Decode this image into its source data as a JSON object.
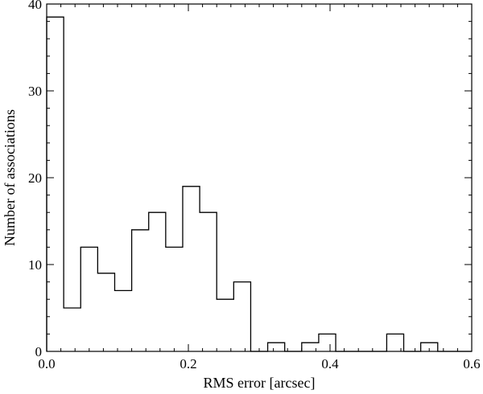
{
  "chart_data": {
    "type": "bar",
    "subtype": "histogram-step",
    "title": "",
    "xlabel": "RMS error [arcsec]",
    "ylabel": "Number of associations",
    "xlim": [
      0.0,
      0.6
    ],
    "ylim": [
      0,
      40
    ],
    "x_major_ticks": [
      0.0,
      0.2,
      0.4,
      0.6
    ],
    "x_tick_labels": [
      "0.0",
      "0.2",
      "0.4",
      "0.6"
    ],
    "x_minor_step": 0.02,
    "y_major_ticks": [
      0,
      10,
      20,
      30,
      40
    ],
    "y_tick_labels": [
      "0",
      "10",
      "20",
      "30",
      "40"
    ],
    "y_minor_step": 2,
    "grid": false,
    "bin_edges": [
      0.0,
      0.024,
      0.048,
      0.072,
      0.096,
      0.12,
      0.144,
      0.168,
      0.192,
      0.216,
      0.24,
      0.264,
      0.288,
      0.312,
      0.336,
      0.36,
      0.384,
      0.408,
      0.432,
      0.456,
      0.48,
      0.504,
      0.528,
      0.552,
      0.576,
      0.6
    ],
    "values": [
      38.5,
      5,
      12,
      9,
      7,
      14,
      16,
      12,
      19,
      16,
      6,
      8,
      0,
      1,
      0,
      1,
      2,
      0,
      0,
      0,
      2,
      0,
      1,
      0,
      0
    ],
    "line_color": "#000000"
  }
}
